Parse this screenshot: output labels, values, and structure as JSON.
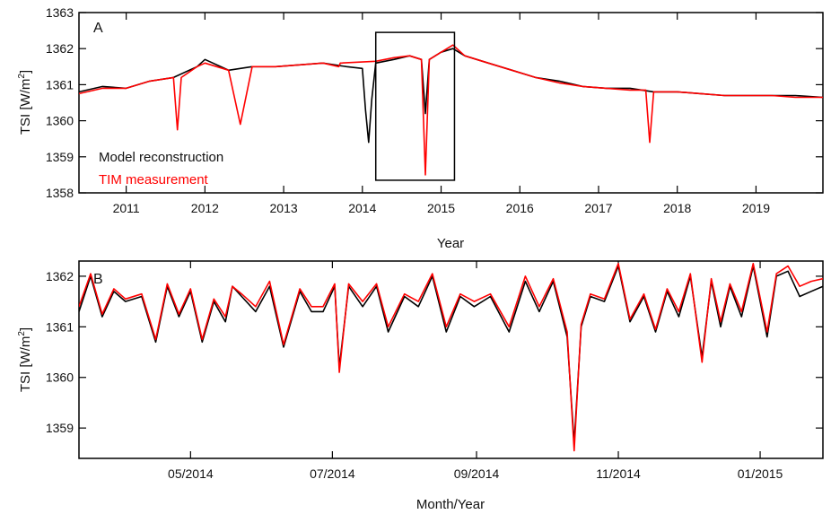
{
  "chart_data": [
    {
      "type": "line",
      "panel_label": "A",
      "xlabel": "Year",
      "ylabel_main": "TSI [W/m",
      "ylabel_sup": "2",
      "ylabel_end": "]",
      "xlim": [
        2010.4,
        2019.85
      ],
      "ylim": [
        1358,
        1363
      ],
      "xticks": [
        2011,
        2012,
        2013,
        2014,
        2015,
        2016,
        2017,
        2018,
        2019
      ],
      "xtick_labels": [
        "2011",
        "2012",
        "2013",
        "2014",
        "2015",
        "2016",
        "2017",
        "2018",
        "2019"
      ],
      "yticks": [
        1358,
        1359,
        1360,
        1361,
        1362,
        1363
      ],
      "ytick_labels": [
        "1358",
        "1359",
        "1360",
        "1361",
        "1362",
        "1363"
      ],
      "legend_position": "bottom-left",
      "highlight_box": {
        "x": [
          2014.17,
          2015.17
        ],
        "y": [
          1358.35,
          1362.45
        ]
      },
      "series": [
        {
          "name": "Model reconstruction",
          "color": "#000000",
          "x": [
            2010.4,
            2010.7,
            2011.0,
            2011.3,
            2011.6,
            2011.9,
            2012.0,
            2012.3,
            2012.6,
            2012.9,
            2013.2,
            2013.5,
            2013.8,
            2014.0,
            2014.04,
            2014.08,
            2014.12,
            2014.17,
            2014.4,
            2014.6,
            2014.75,
            2014.8,
            2014.85,
            2015.0,
            2015.15,
            2015.3,
            2015.6,
            2015.9,
            2016.2,
            2016.5,
            2016.8,
            2017.1,
            2017.4,
            2017.7,
            2018.0,
            2018.3,
            2018.6,
            2018.9,
            2019.2,
            2019.5,
            2019.85
          ],
          "y": [
            1360.8,
            1360.95,
            1360.9,
            1361.1,
            1361.2,
            1361.5,
            1361.7,
            1361.4,
            1361.5,
            1361.5,
            1361.55,
            1361.6,
            1361.5,
            1361.45,
            1360.3,
            1359.4,
            1360.6,
            1361.6,
            1361.7,
            1361.8,
            1361.7,
            1360.2,
            1361.7,
            1361.9,
            1362.0,
            1361.8,
            1361.6,
            1361.4,
            1361.2,
            1361.1,
            1360.95,
            1360.9,
            1360.9,
            1360.8,
            1360.8,
            1360.75,
            1360.7,
            1360.7,
            1360.7,
            1360.7,
            1360.65
          ]
        },
        {
          "name": "TIM measurement",
          "color": "#ff0000",
          "x": [
            2010.4,
            2010.7,
            2011.0,
            2011.3,
            2011.6,
            2011.65,
            2011.7,
            2011.9,
            2012.0,
            2012.3,
            2012.45,
            2012.6,
            2012.9,
            2013.2,
            2013.5,
            2013.7,
            2013.72,
            2014.17,
            2014.4,
            2014.6,
            2014.75,
            2014.8,
            2014.85,
            2015.0,
            2015.15,
            2015.3,
            2015.6,
            2015.9,
            2016.2,
            2016.5,
            2016.8,
            2017.1,
            2017.4,
            2017.6,
            2017.65,
            2017.7,
            2018.0,
            2018.3,
            2018.6,
            2018.9,
            2019.2,
            2019.5,
            2019.85
          ],
          "y": [
            1360.75,
            1360.9,
            1360.9,
            1361.1,
            1361.2,
            1359.75,
            1361.2,
            1361.5,
            1361.6,
            1361.4,
            1359.9,
            1361.5,
            1361.5,
            1361.55,
            1361.6,
            1361.5,
            1361.6,
            1361.65,
            1361.75,
            1361.8,
            1361.7,
            1358.5,
            1361.7,
            1361.9,
            1362.1,
            1361.8,
            1361.6,
            1361.4,
            1361.2,
            1361.05,
            1360.95,
            1360.9,
            1360.85,
            1360.85,
            1359.4,
            1360.8,
            1360.8,
            1360.75,
            1360.7,
            1360.7,
            1360.7,
            1360.65,
            1360.65
          ]
        }
      ]
    },
    {
      "type": "line",
      "panel_label": "B",
      "xlabel": "Month/Year",
      "ylabel_main": "TSI [W/m",
      "ylabel_sup": "2",
      "ylabel_end": "]",
      "xlim": [
        0,
        320
      ],
      "ylim": [
        1358.4,
        1362.3
      ],
      "xticks": [
        48,
        109,
        171,
        232,
        293
      ],
      "xtick_labels": [
        "05/2014",
        "07/2014",
        "09/2014",
        "11/2014",
        "01/2015"
      ],
      "yticks": [
        1359,
        1360,
        1361,
        1362
      ],
      "ytick_labels": [
        "1359",
        "1360",
        "1361",
        "1362"
      ],
      "series": [
        {
          "name": "Model reconstruction",
          "color": "#000000",
          "x": [
            0,
            5,
            10,
            15,
            20,
            27,
            33,
            38,
            43,
            48,
            53,
            58,
            63,
            66,
            70,
            76,
            82,
            88,
            95,
            100,
            105,
            110,
            112,
            116,
            122,
            128,
            133,
            140,
            146,
            152,
            158,
            164,
            170,
            177,
            185,
            192,
            198,
            204,
            210,
            213,
            216,
            220,
            226,
            232,
            237,
            243,
            248,
            253,
            258,
            263,
            268,
            272,
            276,
            280,
            285,
            290,
            296,
            300,
            305,
            310,
            315,
            320
          ],
          "y": [
            1361.3,
            1362.0,
            1361.2,
            1361.7,
            1361.5,
            1361.6,
            1360.7,
            1361.8,
            1361.2,
            1361.7,
            1360.7,
            1361.5,
            1361.1,
            1361.8,
            1361.6,
            1361.3,
            1361.8,
            1360.6,
            1361.7,
            1361.3,
            1361.3,
            1361.8,
            1360.2,
            1361.8,
            1361.4,
            1361.8,
            1360.9,
            1361.6,
            1361.4,
            1362.0,
            1360.9,
            1361.6,
            1361.4,
            1361.6,
            1360.9,
            1361.9,
            1361.3,
            1361.9,
            1360.8,
            1358.7,
            1361.0,
            1361.6,
            1361.5,
            1362.2,
            1361.1,
            1361.6,
            1360.9,
            1361.7,
            1361.2,
            1362.0,
            1360.4,
            1361.9,
            1361.0,
            1361.8,
            1361.2,
            1362.2,
            1360.8,
            1362.0,
            1362.1,
            1361.6,
            1361.7,
            1361.8
          ]
        },
        {
          "name": "TIM measurement",
          "color": "#ff0000",
          "x": [
            0,
            5,
            10,
            15,
            20,
            27,
            33,
            38,
            43,
            48,
            53,
            58,
            63,
            66,
            70,
            76,
            82,
            88,
            95,
            100,
            105,
            110,
            112,
            116,
            122,
            128,
            133,
            140,
            146,
            152,
            158,
            164,
            170,
            177,
            185,
            192,
            198,
            204,
            210,
            213,
            216,
            220,
            226,
            232,
            237,
            243,
            248,
            253,
            258,
            263,
            268,
            272,
            276,
            280,
            285,
            290,
            296,
            300,
            305,
            310,
            315,
            320
          ],
          "y": [
            1361.4,
            1362.05,
            1361.25,
            1361.75,
            1361.55,
            1361.65,
            1360.75,
            1361.85,
            1361.25,
            1361.75,
            1360.75,
            1361.55,
            1361.2,
            1361.8,
            1361.65,
            1361.4,
            1361.9,
            1360.65,
            1361.75,
            1361.4,
            1361.4,
            1361.85,
            1360.1,
            1361.85,
            1361.5,
            1361.85,
            1361.0,
            1361.65,
            1361.5,
            1362.05,
            1361.0,
            1361.65,
            1361.5,
            1361.65,
            1361.0,
            1362.0,
            1361.4,
            1361.95,
            1360.9,
            1358.55,
            1361.05,
            1361.65,
            1361.55,
            1362.25,
            1361.15,
            1361.65,
            1360.95,
            1361.75,
            1361.3,
            1362.05,
            1360.3,
            1361.95,
            1361.1,
            1361.85,
            1361.3,
            1362.25,
            1360.9,
            1362.05,
            1362.2,
            1361.8,
            1361.9,
            1361.95
          ]
        }
      ]
    }
  ]
}
